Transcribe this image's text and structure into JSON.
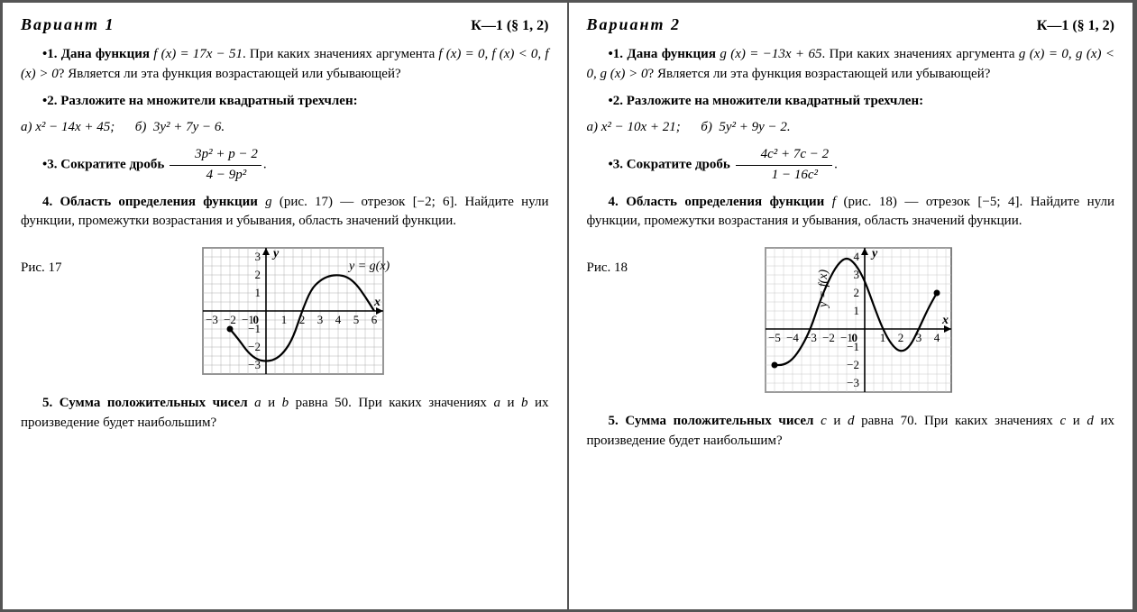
{
  "variant1": {
    "title": "Вариант 1",
    "ref": "К—1  (§ 1, 2)",
    "p1": {
      "pre": "•1.  Дана функция ",
      "func": "f (x) = 17x − 51",
      "post1": ". При каких значениях аргумента ",
      "cond": "f (x) = 0,  f (x) < 0,  f (x) > 0",
      "post2": "? Является ли эта функция возрастающей или убывающей?"
    },
    "p2": {
      "lead": "•2.  Разложите на множители квадратный трехчлен:",
      "a": "а)  x² − 14x + 45;",
      "b": "      б)  3y² + 7y − 6."
    },
    "p3": {
      "lead": "•3.  Сократите дробь",
      "num": "3p² + p − 2",
      "den": "4 − 9p²",
      "tail": "."
    },
    "p4": {
      "text1": "4. Область определения функции ",
      "g": "g",
      "text2": " (рис. 17) — отрезок [−2; 6]. Найдите нули функции, промежутки возрастания и убывания, область значений функции."
    },
    "figlabel": "Рис. 17",
    "p5": {
      "text1": "5. Сумма положительных чисел ",
      "a": "a",
      "and": " и ",
      "b": "b",
      "text2": " равна 50. При каких значениях ",
      "a2": "a",
      "and2": " и ",
      "b2": "b",
      "text3": " их произведение будет наибольшим?"
    },
    "chart": {
      "xlim": [
        -3.5,
        6.5
      ],
      "ylim": [
        -3.5,
        3.5
      ],
      "xticks": [
        -3,
        -2,
        -1,
        0,
        1,
        2,
        3,
        4,
        5,
        6
      ],
      "yticks": [
        -3,
        -2,
        -1,
        1,
        2,
        3
      ],
      "curve_label": "y = g(x)",
      "curve": [
        [
          -2,
          -1
        ],
        [
          -1.5,
          -1.6
        ],
        [
          -1,
          -2.3
        ],
        [
          -0.5,
          -2.7
        ],
        [
          0,
          -2.8
        ],
        [
          0.5,
          -2.7
        ],
        [
          1,
          -2.3
        ],
        [
          1.5,
          -1.5
        ],
        [
          2,
          0
        ],
        [
          2.5,
          1.2
        ],
        [
          3,
          1.7
        ],
        [
          3.5,
          1.95
        ],
        [
          4,
          2
        ],
        [
          4.5,
          1.9
        ],
        [
          5,
          1.5
        ],
        [
          5.5,
          0.8
        ],
        [
          6,
          0
        ]
      ],
      "endpoints": [
        [
          -2,
          -1
        ]
      ],
      "grid_color": "#b0b0b0",
      "axis_color": "#000000",
      "curve_color": "#000000",
      "curve_width": 2.2,
      "cell": 20
    }
  },
  "variant2": {
    "title": "Вариант 2",
    "ref": "К—1  (§ 1, 2)",
    "p1": {
      "pre": "•1.  Дана функция ",
      "func": "g (x) = −13x + 65",
      "post1": ". При каких значениях аргумента ",
      "cond": "g (x) = 0,  g (x) < 0,  g (x) > 0",
      "post2": "? Является ли эта функция возрастающей или убывающей?"
    },
    "p2": {
      "lead": "•2.  Разложите на множители квадратный трехчлен:",
      "a": "а)  x² − 10x + 21;",
      "b": "      б)  5y² + 9y − 2."
    },
    "p3": {
      "lead": "•3.  Сократите дробь",
      "num": "4c² + 7c − 2",
      "den": "1 − 16c²",
      "tail": "."
    },
    "p4": {
      "text1": "4. Область определения функции ",
      "g": "f",
      "text2": " (рис. 18) — отрезок [−5; 4]. Найдите нули функции, промежутки возрастания и убывания, область значений функции."
    },
    "figlabel": "Рис. 18",
    "p5": {
      "text1": "5. Сумма положительных чисел ",
      "a": "c",
      "and": " и ",
      "b": "d",
      "text2": " равна 70. При каких значениях ",
      "a2": "c",
      "and2": " и ",
      "b2": "d",
      "text3": " их произведение будет наибольшим?"
    },
    "chart": {
      "xlim": [
        -5.5,
        4.8
      ],
      "ylim": [
        -3.5,
        4.5
      ],
      "xticks": [
        -5,
        -4,
        -3,
        -2,
        -1,
        0,
        1,
        2,
        3,
        4
      ],
      "yticks": [
        -3,
        -2,
        -1,
        1,
        2,
        3,
        4
      ],
      "curve_label": "y = f(x)",
      "curve": [
        [
          -5,
          -2
        ],
        [
          -4.5,
          -2.0
        ],
        [
          -4,
          -1.7
        ],
        [
          -3.5,
          -1.0
        ],
        [
          -3,
          0
        ],
        [
          -2.5,
          1.5
        ],
        [
          -2,
          2.7
        ],
        [
          -1.5,
          3.6
        ],
        [
          -1,
          4
        ],
        [
          -0.5,
          3.6
        ],
        [
          0,
          2.7
        ],
        [
          0.5,
          1.3
        ],
        [
          1,
          0
        ],
        [
          1.5,
          -0.9
        ],
        [
          2,
          -1.3
        ],
        [
          2.5,
          -1.0
        ],
        [
          3,
          0
        ],
        [
          3.5,
          1.1
        ],
        [
          4,
          2
        ]
      ],
      "endpoints": [
        [
          -5,
          -2
        ],
        [
          4,
          2
        ]
      ],
      "grid_color": "#c8c8c8",
      "axis_color": "#000000",
      "curve_color": "#000000",
      "curve_width": 2.2,
      "cell": 20,
      "label_rotated": true
    }
  }
}
